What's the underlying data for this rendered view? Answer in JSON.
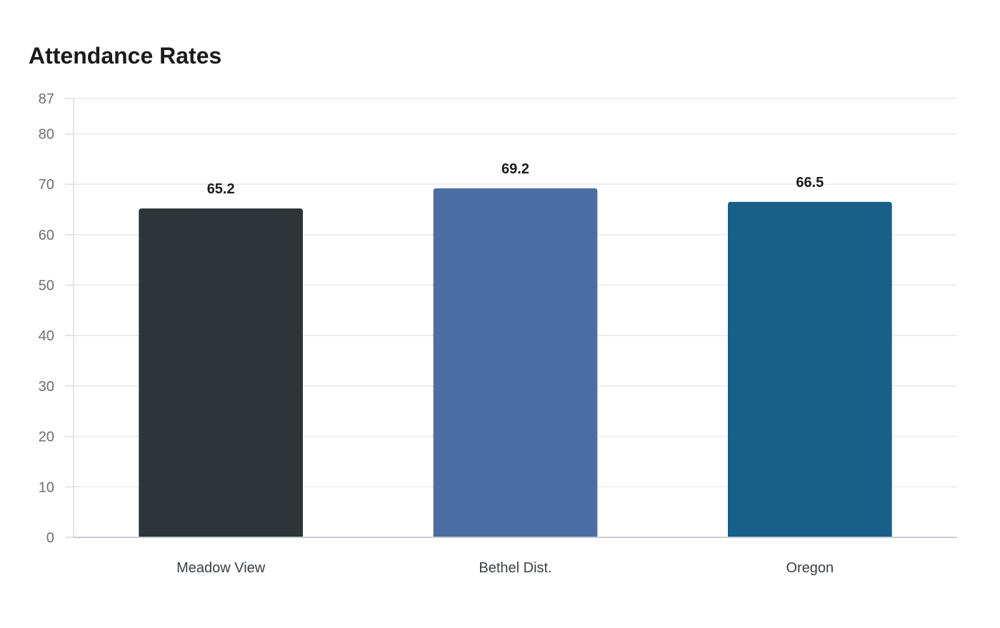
{
  "chart_data": {
    "type": "bar",
    "title": "Attendance Rates",
    "xlabel": "",
    "ylabel": "",
    "categories": [
      "Meadow View",
      "Bethel Dist.",
      "Oregon"
    ],
    "values": [
      65.2,
      69.2,
      66.5
    ],
    "value_labels": [
      "65.2",
      "69.2",
      "66.5"
    ],
    "colors": [
      "#2e3538",
      "#4a6ea3",
      "#186087"
    ],
    "ylim": [
      0,
      87
    ],
    "yticks": [
      0,
      10,
      20,
      30,
      40,
      50,
      60,
      70,
      80,
      87
    ],
    "ytick_labels": [
      "0",
      "10",
      "20",
      "30",
      "40",
      "50",
      "60",
      "70",
      "80",
      "87"
    ],
    "grid": true,
    "legend": "none"
  }
}
